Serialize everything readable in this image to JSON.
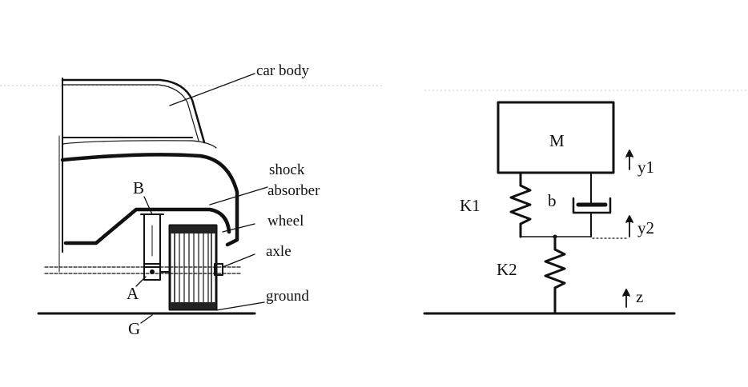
{
  "left_figure": {
    "labels": {
      "car_body": "car body",
      "shock": "shock",
      "absorber": "absorber",
      "wheel": "wheel",
      "axle": "axle",
      "ground": "ground",
      "point_b": "B",
      "point_a": "A",
      "point_g": "G"
    }
  },
  "right_figure": {
    "labels": {
      "mass": "M",
      "spring_k1": "K1",
      "damper_b": "b",
      "spring_k2": "K2",
      "disp_y1": "y1",
      "disp_y2": "y2",
      "disp_z": "z"
    }
  }
}
